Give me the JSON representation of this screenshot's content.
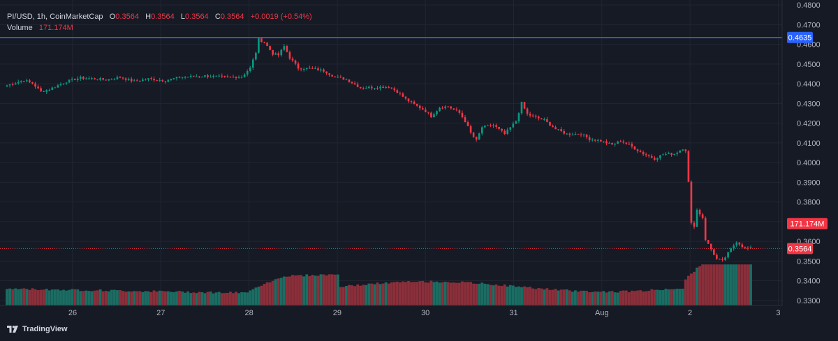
{
  "legend": {
    "symbol": "PI/USD, 1h, CoinMarketCap",
    "o_label": "O",
    "o": "0.3564",
    "h_label": "H",
    "h": "0.3564",
    "l_label": "L",
    "l": "0.3564",
    "c_label": "C",
    "c": "0.3564",
    "change": "+0.0019 (+0.54%)",
    "volume_label": "Volume",
    "volume": "171.174M"
  },
  "brand": "TradingView",
  "colors": {
    "up": "#089981",
    "down": "#f23645",
    "up_vol": "#1b6d63",
    "down_vol": "#8b2f3a",
    "line": "#2962ff"
  },
  "chart_data": {
    "type": "candlestick",
    "title": "PI/USD, 1h, CoinMarketCap",
    "ylim": [
      0.3275,
      0.4825
    ],
    "y_ticks": [
      "0.4800",
      "0.4700",
      "0.4600",
      "0.4500",
      "0.4400",
      "0.4300",
      "0.4200",
      "0.4100",
      "0.4000",
      "0.3900",
      "0.3800",
      "0.3700",
      "0.3600",
      "0.3500",
      "0.3400",
      "0.3300"
    ],
    "x_ticks": [
      "26",
      "27",
      "28",
      "29",
      "30",
      "31",
      "Aug",
      "2",
      "3"
    ],
    "horizontal_line": {
      "value": 0.4635,
      "label": "0.4635"
    },
    "last_price": {
      "value": 0.3564,
      "label": "0.3564"
    },
    "volume_label": {
      "value": "171.174M"
    },
    "anchors": [
      [
        0,
        0.4392
      ],
      [
        6,
        0.4418
      ],
      [
        9,
        0.4402
      ],
      [
        12,
        0.436
      ],
      [
        15,
        0.4372
      ],
      [
        21,
        0.4412
      ],
      [
        26,
        0.443
      ],
      [
        32,
        0.4424
      ],
      [
        35,
        0.442
      ],
      [
        40,
        0.4433
      ],
      [
        45,
        0.4412
      ],
      [
        50,
        0.4425
      ],
      [
        56,
        0.4416
      ],
      [
        61,
        0.4433
      ],
      [
        70,
        0.444
      ],
      [
        78,
        0.4432
      ],
      [
        83,
        0.4436
      ],
      [
        86,
        0.448
      ],
      [
        88,
        0.456
      ],
      [
        89,
        0.4625
      ],
      [
        91,
        0.461
      ],
      [
        94,
        0.4552
      ],
      [
        96,
        0.4545
      ],
      [
        98,
        0.459
      ],
      [
        100,
        0.4532
      ],
      [
        103,
        0.448
      ],
      [
        108,
        0.4476
      ],
      [
        112,
        0.4466
      ],
      [
        116,
        0.4435
      ],
      [
        120,
        0.4422
      ],
      [
        125,
        0.438
      ],
      [
        130,
        0.4382
      ],
      [
        135,
        0.4385
      ],
      [
        138,
        0.436
      ],
      [
        141,
        0.4322
      ],
      [
        144,
        0.4295
      ],
      [
        148,
        0.4262
      ],
      [
        150,
        0.4235
      ],
      [
        153,
        0.428
      ],
      [
        156,
        0.4285
      ],
      [
        160,
        0.4252
      ],
      [
        162,
        0.421
      ],
      [
        164,
        0.415
      ],
      [
        166,
        0.4112
      ],
      [
        168,
        0.418
      ],
      [
        172,
        0.419
      ],
      [
        176,
        0.4145
      ],
      [
        180,
        0.421
      ],
      [
        182,
        0.4302
      ],
      [
        184,
        0.4245
      ],
      [
        190,
        0.4215
      ],
      [
        194,
        0.417
      ],
      [
        198,
        0.4145
      ],
      [
        203,
        0.4145
      ],
      [
        206,
        0.412
      ],
      [
        210,
        0.411
      ],
      [
        214,
        0.409
      ],
      [
        217,
        0.411
      ],
      [
        220,
        0.409
      ],
      [
        225,
        0.4045
      ],
      [
        229,
        0.402
      ],
      [
        232,
        0.4042
      ],
      [
        236,
        0.4045
      ],
      [
        239,
        0.4072
      ],
      [
        240,
        0.4062
      ],
      [
        241,
        0.39
      ],
      [
        242,
        0.369
      ],
      [
        243,
        0.368
      ],
      [
        244,
        0.376
      ],
      [
        246,
        0.372
      ],
      [
        247,
        0.361
      ],
      [
        249,
        0.356
      ],
      [
        251,
        0.351
      ],
      [
        253,
        0.35
      ],
      [
        255,
        0.354
      ],
      [
        258,
        0.36
      ],
      [
        261,
        0.3564
      ],
      [
        263,
        0.3564
      ]
    ]
  }
}
